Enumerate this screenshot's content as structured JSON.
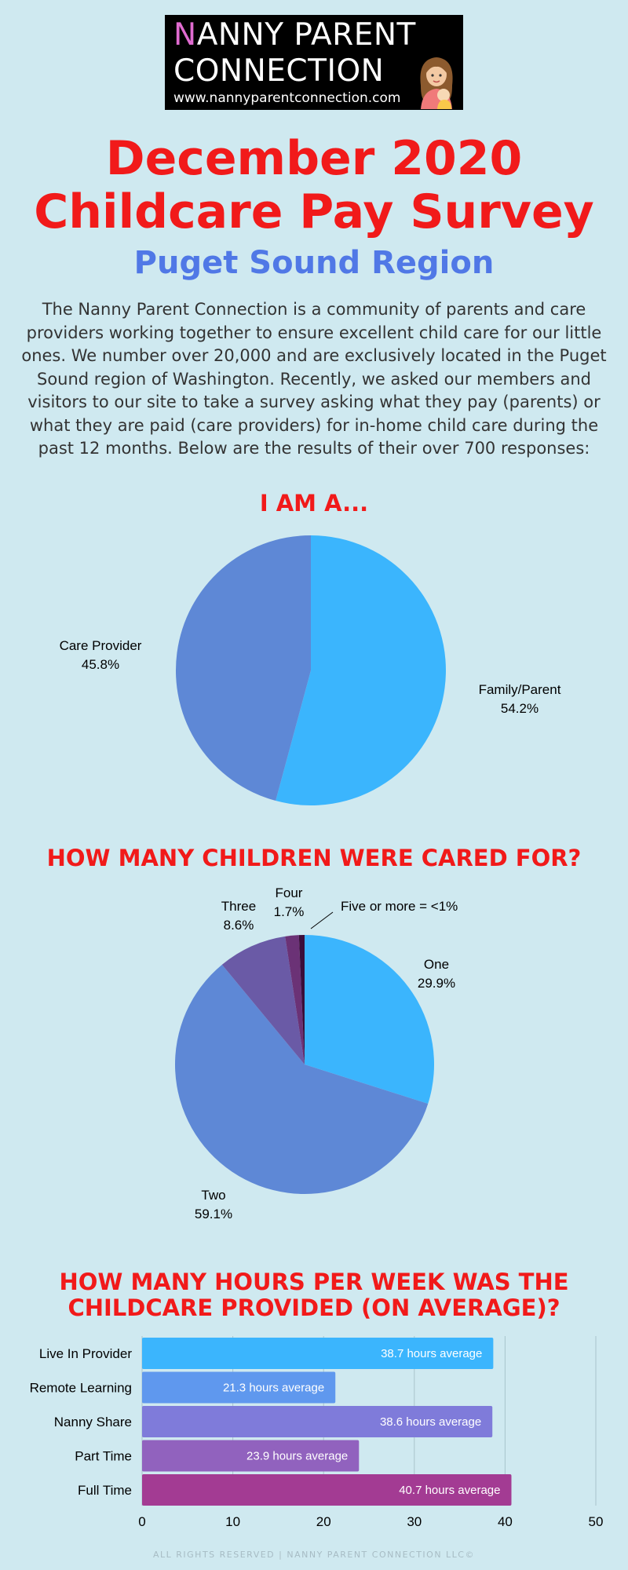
{
  "logo": {
    "line1_initial": "N",
    "line1_rest": "ANNY PARENT",
    "line2": "CONNECTION",
    "url": "www.nannyparentconnection.com"
  },
  "title": {
    "line1": "December 2020",
    "line2": "Childcare Pay Survey",
    "subtitle": "Puget Sound Region"
  },
  "intro": "The Nanny Parent Connection is a community of parents and care providers working together to ensure excellent child care for our little ones. We number over 20,000 and are exclusively located in the Puget Sound region of Washington. Recently, we asked our members and visitors to our site to take a survey asking what they pay (parents) or what they are paid (care providers) for in-home child care during the past 12 months. Below are the results of their over 700 responses:",
  "colors": {
    "background": "#cfe9f0",
    "title_red": "#f11a1a",
    "subtitle_blue": "#5078e6"
  },
  "chart_data": [
    {
      "type": "pie",
      "title": "I AM A...",
      "slices": [
        {
          "label": "Family/Parent",
          "value": 54.2,
          "value_label": "54.2%",
          "color": "#3bb5fd"
        },
        {
          "label": "Care Provider",
          "value": 45.8,
          "value_label": "45.8%",
          "color": "#5e88d6"
        }
      ]
    },
    {
      "type": "pie",
      "title": "HOW MANY CHILDREN WERE CARED FOR?",
      "slices": [
        {
          "label": "One",
          "value": 29.9,
          "value_label": "29.9%",
          "color": "#3bb5fd"
        },
        {
          "label": "Two",
          "value": 59.1,
          "value_label": "59.1%",
          "color": "#5e88d6"
        },
        {
          "label": "Three",
          "value": 8.6,
          "value_label": "8.6%",
          "color": "#6a5aa6"
        },
        {
          "label": "Four",
          "value": 1.7,
          "value_label": "1.7%",
          "color": "#6b3276"
        },
        {
          "label": "Five or more",
          "value": 0.7,
          "value_label": "Five or more = <1%",
          "color": "#3b0e3a"
        }
      ]
    },
    {
      "type": "bar",
      "orientation": "horizontal",
      "title_lines": [
        "HOW MANY HOURS PER WEEK WAS THE",
        "CHILDCARE PROVIDED (ON AVERAGE)?"
      ],
      "categories": [
        "Live In Provider",
        "Remote Learning",
        "Nanny Share",
        "Part Time",
        "Full Time"
      ],
      "values": [
        38.7,
        21.3,
        38.6,
        23.9,
        40.7
      ],
      "data_labels": [
        "38.7 hours average",
        "21.3 hours average",
        "38.6 hours average",
        "23.9 hours average",
        "40.7 hours average"
      ],
      "colors": [
        "#3bb5fd",
        "#5f98ee",
        "#7f7bda",
        "#9162be",
        "#a33b93"
      ],
      "xlim": [
        0,
        50
      ],
      "xticks": [
        "0",
        "10",
        "20",
        "30",
        "40",
        "50"
      ],
      "grid": true
    }
  ],
  "footer": "ALL RIGHTS RESERVED | NANNY PARENT CONNECTION LLC©"
}
